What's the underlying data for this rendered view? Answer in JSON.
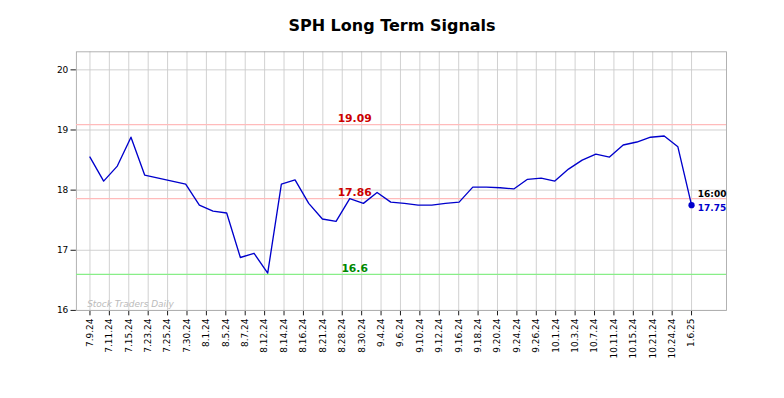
{
  "chart_data": {
    "type": "line",
    "title": "SPH Long Term Signals",
    "color": "#0000cc",
    "background_color": "#ffffff",
    "grid": true,
    "grid_color": "#cccccc",
    "x": [
      0,
      0.7045454545,
      1.4090909091,
      2.1136363636,
      2.8181818182,
      3.5227272727,
      4.2272727273,
      4.9318181818,
      5.6363636364,
      6.3409090909,
      7.0454545455,
      7.75,
      8.4545454545,
      9.1590909091,
      9.8636363636,
      10.5681818182,
      11.2727272727,
      11.9772727273,
      12.6818181818,
      13.3863636364,
      14.0909090909,
      14.7954545455,
      15.5,
      16.2045454545,
      16.9090909091,
      17.6136363636,
      18.3181818182,
      19.0227272727,
      19.7272727273,
      20.4318181818,
      21.1363636364,
      21.8409090909,
      22.5454545455,
      23.25,
      23.9545454545,
      24.6590909091,
      25.3636363636,
      26.0681818182,
      26.7727272727,
      27.4772727273,
      28.1818181818,
      28.8863636364,
      29.5909090909,
      30.2954545455,
      31
    ],
    "values": [
      18.55,
      18.15,
      18.4,
      18.88,
      18.25,
      18.2,
      18.15,
      18.1,
      17.75,
      17.65,
      17.62,
      16.88,
      16.95,
      16.62,
      18.1,
      18.17,
      17.78,
      17.52,
      17.48,
      17.86,
      17.78,
      17.96,
      17.8,
      17.78,
      17.75,
      17.75,
      17.78,
      17.8,
      18.05,
      18.05,
      18.04,
      18.02,
      18.18,
      18.2,
      18.15,
      18.35,
      18.5,
      18.6,
      18.55,
      18.75,
      18.8,
      18.88,
      18.9,
      18.72,
      17.75
    ],
    "xlim": [
      -0.7,
      32.8
    ],
    "xticks": [
      {
        "value": 0,
        "label": "7.9.24"
      },
      {
        "value": 1,
        "label": "7.11.24"
      },
      {
        "value": 2,
        "label": "7.15.24"
      },
      {
        "value": 3,
        "label": "7.23.24"
      },
      {
        "value": 4,
        "label": "7.25.24"
      },
      {
        "value": 5,
        "label": "7.30.24"
      },
      {
        "value": 6,
        "label": "8.1.24"
      },
      {
        "value": 7,
        "label": "8.5.24"
      },
      {
        "value": 8,
        "label": "8.7.24"
      },
      {
        "value": 9,
        "label": "8.12.24"
      },
      {
        "value": 10,
        "label": "8.14.24"
      },
      {
        "value": 11,
        "label": "8.16.24"
      },
      {
        "value": 12,
        "label": "8.21.24"
      },
      {
        "value": 13,
        "label": "8.28.24"
      },
      {
        "value": 14,
        "label": "8.30.24"
      },
      {
        "value": 15,
        "label": "9.4.24"
      },
      {
        "value": 16,
        "label": "9.6.24"
      },
      {
        "value": 17,
        "label": "9.10.24"
      },
      {
        "value": 18,
        "label": "9.12.24"
      },
      {
        "value": 19,
        "label": "9.16.24"
      },
      {
        "value": 20,
        "label": "9.18.24"
      },
      {
        "value": 21,
        "label": "9.20.24"
      },
      {
        "value": 22,
        "label": "9.24.24"
      },
      {
        "value": 23,
        "label": "9.26.24"
      },
      {
        "value": 24,
        "label": "10.1.24"
      },
      {
        "value": 25,
        "label": "10.3.24"
      },
      {
        "value": 26,
        "label": "10.7.24"
      },
      {
        "value": 27,
        "label": "10.11.24"
      },
      {
        "value": 28,
        "label": "10.15.24"
      },
      {
        "value": 29,
        "label": "10.21.24"
      },
      {
        "value": 30,
        "label": "10.24.24"
      },
      {
        "value": 31,
        "label": "1.6.25"
      }
    ],
    "ylim": [
      16,
      20.3
    ],
    "yticks": [
      16,
      17,
      18,
      19,
      20
    ],
    "hlines": [
      {
        "value": 19.09,
        "color": "#ffbbbb",
        "label_color": "#cc0000"
      },
      {
        "value": 17.86,
        "color": "#ffbbbb",
        "label_color": "#cc0000"
      },
      {
        "value": 16.6,
        "color": "#88ee88",
        "label_color": "#008800"
      }
    ],
    "last_label": "16:00",
    "last_value_label": "17.75",
    "last_value_color": "#0000cc",
    "watermark": "Stock Traders Daily"
  }
}
